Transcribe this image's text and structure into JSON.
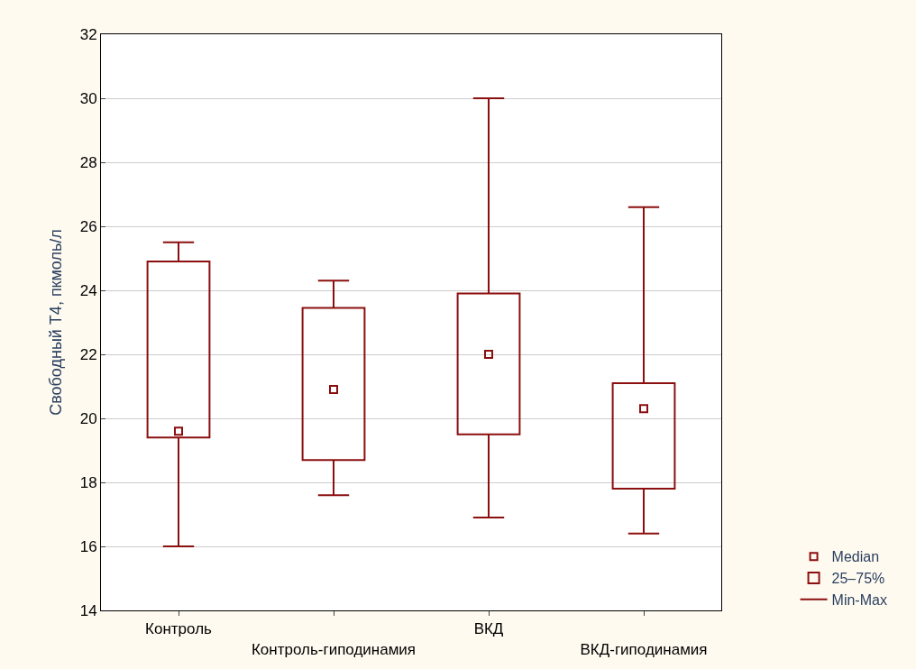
{
  "chart_data": {
    "type": "box",
    "ylabel": "Свободный Т4, пкмоль/л",
    "categories": [
      "Контроль",
      "Контроль-гиподинамия",
      "ВКД",
      "ВКД-гиподинамия"
    ],
    "boxes": [
      {
        "low": 16,
        "q1": 19.4,
        "median": 19.6,
        "q3": 24.9,
        "high": 25.5
      },
      {
        "low": 17.6,
        "q1": 18.7,
        "median": 20.9,
        "q3": 23.45,
        "high": 24.3
      },
      {
        "low": 16.9,
        "q1": 19.5,
        "median": 22.0,
        "q3": 23.9,
        "high": 30
      },
      {
        "low": 16.4,
        "q1": 17.8,
        "median": 20.3,
        "q3": 21.1,
        "high": 26.6
      }
    ],
    "colors": [
      "#8b0f0f",
      "#8b0f0f",
      "#8b0f0f",
      "#8b0f0f"
    ],
    "annotations": [
      "Median",
      "25–75%",
      "Min-Max"
    ],
    "ylim": [
      14,
      32
    ],
    "yticks": [
      14,
      16,
      18,
      20,
      22,
      24,
      26,
      28,
      30,
      32
    ],
    "grid": "y",
    "marker": "square"
  }
}
